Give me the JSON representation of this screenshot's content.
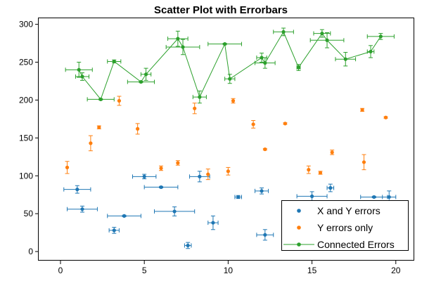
{
  "chart_data": {
    "type": "scatter",
    "title": "Scatter Plot with Errorbars",
    "xlabel": "",
    "ylabel": "",
    "xlim": [
      -1.3,
      21.1
    ],
    "ylim": [
      -12,
      308
    ],
    "xticks": [
      0,
      5,
      10,
      15,
      20
    ],
    "yticks": [
      0,
      50,
      100,
      150,
      200,
      250,
      300
    ],
    "grid": false,
    "legend_position": "bottom-right",
    "series": [
      {
        "name": "X and Y errors",
        "color": "#1f77b4",
        "connected": false,
        "points": [
          {
            "x": 1.0,
            "y": 82,
            "xerr": 0.8,
            "yerr": 5
          },
          {
            "x": 1.3,
            "y": 56,
            "xerr": 0.9,
            "yerr": 4
          },
          {
            "x": 3.2,
            "y": 28,
            "xerr": 0.3,
            "yerr": 4
          },
          {
            "x": 3.8,
            "y": 47,
            "xerr": 1.0,
            "yerr": 1
          },
          {
            "x": 5.0,
            "y": 99,
            "xerr": 0.7,
            "yerr": 3
          },
          {
            "x": 6.0,
            "y": 85,
            "xerr": 1.0,
            "yerr": 1
          },
          {
            "x": 6.8,
            "y": 53,
            "xerr": 1.2,
            "yerr": 6
          },
          {
            "x": 7.6,
            "y": 8,
            "xerr": 0.2,
            "yerr": 4
          },
          {
            "x": 8.3,
            "y": 99,
            "xerr": 0.6,
            "yerr": 7
          },
          {
            "x": 9.1,
            "y": 38,
            "xerr": 0.3,
            "yerr": 9
          },
          {
            "x": 10.6,
            "y": 72,
            "xerr": 0.2,
            "yerr": 2
          },
          {
            "x": 12.0,
            "y": 80,
            "xerr": 0.4,
            "yerr": 4
          },
          {
            "x": 12.2,
            "y": 22,
            "xerr": 0.5,
            "yerr": 7
          },
          {
            "x": 15.0,
            "y": 73,
            "xerr": 0.9,
            "yerr": 6
          },
          {
            "x": 16.1,
            "y": 84,
            "xerr": 0.2,
            "yerr": 5
          },
          {
            "x": 18.7,
            "y": 72,
            "xerr": 0.8,
            "yerr": 1
          },
          {
            "x": 19.6,
            "y": 72,
            "xerr": 0.4,
            "yerr": 8
          }
        ]
      },
      {
        "name": "Y errors only",
        "color": "#ff7f0e",
        "connected": false,
        "points": [
          {
            "x": 0.4,
            "y": 111,
            "yerr": 8
          },
          {
            "x": 1.8,
            "y": 143,
            "yerr": 10
          },
          {
            "x": 2.3,
            "y": 164,
            "yerr": 2
          },
          {
            "x": 3.5,
            "y": 199,
            "yerr": 6
          },
          {
            "x": 4.6,
            "y": 162,
            "yerr": 7
          },
          {
            "x": 6.0,
            "y": 110,
            "yerr": 3
          },
          {
            "x": 7.0,
            "y": 117,
            "yerr": 3
          },
          {
            "x": 8.0,
            "y": 189,
            "yerr": 7
          },
          {
            "x": 8.8,
            "y": 102,
            "yerr": 7
          },
          {
            "x": 10.0,
            "y": 106,
            "yerr": 5
          },
          {
            "x": 10.3,
            "y": 199,
            "yerr": 3
          },
          {
            "x": 11.5,
            "y": 168,
            "yerr": 5
          },
          {
            "x": 12.2,
            "y": 135,
            "yerr": 1
          },
          {
            "x": 13.4,
            "y": 169,
            "yerr": 1
          },
          {
            "x": 14.8,
            "y": 108,
            "yerr": 5
          },
          {
            "x": 15.5,
            "y": 104,
            "yerr": 2
          },
          {
            "x": 16.2,
            "y": 131,
            "yerr": 3
          },
          {
            "x": 18.0,
            "y": 187,
            "yerr": 2
          },
          {
            "x": 18.1,
            "y": 118,
            "yerr": 10
          },
          {
            "x": 19.4,
            "y": 177,
            "yerr": 1
          }
        ]
      },
      {
        "name": "Connected Errors",
        "color": "#2ca02c",
        "connected": true,
        "points": [
          {
            "x": 1.1,
            "y": 240,
            "xerr": 0.8,
            "yerr": 10
          },
          {
            "x": 1.3,
            "y": 231,
            "xerr": 0.4,
            "yerr": 5
          },
          {
            "x": 2.4,
            "y": 201,
            "xerr": 0.8,
            "yerr": 1
          },
          {
            "x": 3.2,
            "y": 251,
            "xerr": 0.4,
            "yerr": 2
          },
          {
            "x": 4.8,
            "y": 224,
            "xerr": 0.8,
            "yerr": 1
          },
          {
            "x": 5.1,
            "y": 234,
            "xerr": 0.3,
            "yerr": 8
          },
          {
            "x": 7.0,
            "y": 281,
            "xerr": 0.6,
            "yerr": 10
          },
          {
            "x": 7.3,
            "y": 270,
            "xerr": 1.0,
            "yerr": 10
          },
          {
            "x": 8.3,
            "y": 204,
            "xerr": 0.4,
            "yerr": 8
          },
          {
            "x": 9.8,
            "y": 274,
            "xerr": 1.0,
            "yerr": 1
          },
          {
            "x": 10.1,
            "y": 228,
            "xerr": 0.3,
            "yerr": 6
          },
          {
            "x": 12.0,
            "y": 256,
            "xerr": 0.3,
            "yerr": 6
          },
          {
            "x": 12.2,
            "y": 249,
            "xerr": 0.6,
            "yerr": 7
          },
          {
            "x": 13.3,
            "y": 290,
            "xerr": 0.6,
            "yerr": 5
          },
          {
            "x": 14.2,
            "y": 243,
            "xerr": 0.1,
            "yerr": 4
          },
          {
            "x": 15.6,
            "y": 288,
            "xerr": 0.5,
            "yerr": 5
          },
          {
            "x": 15.9,
            "y": 279,
            "xerr": 1.0,
            "yerr": 10
          },
          {
            "x": 17.0,
            "y": 254,
            "xerr": 0.6,
            "yerr": 9
          },
          {
            "x": 18.5,
            "y": 264,
            "xerr": 0.2,
            "yerr": 8
          },
          {
            "x": 19.1,
            "y": 284,
            "xerr": 0.8,
            "yerr": 4
          }
        ]
      }
    ]
  }
}
